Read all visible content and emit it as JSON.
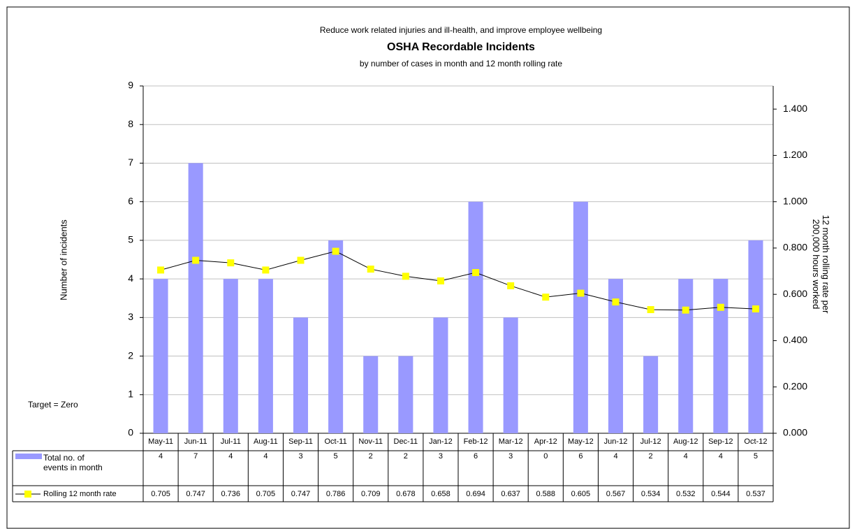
{
  "chart_data": {
    "type": "bar_line",
    "supertitle": "Reduce work related injuries and ill-health, and improve employee wellbeing",
    "title": "OSHA Recordable Incidents",
    "subtitle": "by number of cases in month and 12 month rolling rate",
    "ylabel": "Number of incidents",
    "y2label": "12 month rolling rate per 200,000 hours worked",
    "annotation": "Target = Zero",
    "categories": [
      "May-11",
      "Jun-11",
      "Jul-11",
      "Aug-11",
      "Sep-11",
      "Oct-11",
      "Nov-11",
      "Dec-11",
      "Jan-12",
      "Feb-12",
      "Mar-12",
      "Apr-12",
      "May-12",
      "Jun-12",
      "Jul-12",
      "Aug-12",
      "Sep-12",
      "Oct-12"
    ],
    "series": [
      {
        "name": "Total no. of events in month",
        "type": "bar",
        "color": "#9999ff",
        "values": [
          4,
          7,
          4,
          4,
          3,
          5,
          2,
          2,
          3,
          6,
          3,
          0,
          6,
          4,
          2,
          4,
          4,
          5
        ]
      },
      {
        "name": "Rolling 12 month rate",
        "type": "line",
        "axis": "y2",
        "color": "#ffff00",
        "values": [
          0.705,
          0.747,
          0.736,
          0.705,
          0.747,
          0.786,
          0.709,
          0.678,
          0.658,
          0.694,
          0.637,
          0.588,
          0.605,
          0.567,
          0.534,
          0.532,
          0.544,
          0.537
        ]
      }
    ],
    "ylim": [
      0,
      9
    ],
    "yticks": [
      0,
      1,
      2,
      3,
      4,
      5,
      6,
      7,
      8,
      9
    ],
    "y2lim": [
      0,
      1.5
    ],
    "y2ticks": [
      {
        "value": 0,
        "label": "0.000"
      },
      {
        "value": 0.2,
        "label": "0.200"
      },
      {
        "value": 0.4,
        "label": "0.400"
      },
      {
        "value": 0.6,
        "label": "0.600"
      },
      {
        "value": 0.8,
        "label": "0.800"
      },
      {
        "value": 1,
        "label": "1.000"
      },
      {
        "value": 1.2,
        "label": "1.200"
      },
      {
        "value": 1.4,
        "label": "1.400"
      }
    ],
    "grid": true
  }
}
